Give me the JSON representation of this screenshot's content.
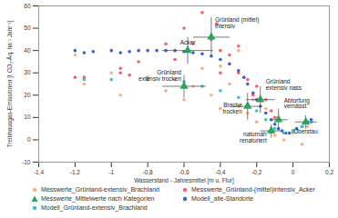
{
  "chart_data": {
    "type": "scatter",
    "x_label": "Wasserstand - Jahresmittel [m u. Flur]",
    "y_label": "Treibhausgas-Emissionen [t CO₂-Äq. ha⁻¹ Jahr⁻¹]",
    "xlim": [
      -1.4,
      0.2
    ],
    "ylim": [
      -10,
      60
    ],
    "xticks": [
      {
        "value": -1.4,
        "label": "-1,4"
      },
      {
        "value": -1.2,
        "label": "-1,2"
      },
      -1,
      {
        "value": -0.8,
        "label": "-0,8"
      },
      {
        "value": -0.6,
        "label": "-0,6"
      },
      {
        "value": -0.4,
        "label": "-0,4"
      },
      {
        "value": -0.2,
        "label": "-0,2"
      },
      0,
      {
        "value": 0.2,
        "label": "0,2"
      }
    ],
    "yticks": [
      -10,
      0,
      10,
      20,
      30,
      40,
      50,
      60
    ],
    "grid": false,
    "legend": "bottom",
    "series": [
      {
        "name": "Messwerte_Grünland-extensiv_Brachland",
        "color": "#f4b183",
        "marker": "circle",
        "x": [
          -1.2,
          -1.15,
          -1.0,
          -0.95,
          -0.8,
          -0.7,
          -0.65,
          -0.6,
          -0.55,
          -0.5,
          -0.45,
          -0.4,
          -0.4,
          -0.35,
          -0.3,
          -0.3,
          -0.25,
          -0.22,
          -0.2,
          -0.15,
          -0.12,
          -0.1,
          -0.05,
          0,
          0.05,
          0.08
        ],
        "values": [
          38,
          25,
          30,
          20,
          28,
          22,
          27,
          18,
          24,
          32,
          20,
          14,
          33,
          25,
          15,
          40,
          12,
          18,
          8,
          14,
          5,
          2,
          0,
          3,
          -2,
          6
        ]
      },
      {
        "name": "Messwerte_Grünland-(mittel)intensiv_Acker",
        "color": "#f0626e",
        "marker": "circle",
        "x": [
          -1.2,
          -1.15,
          -0.95,
          -0.95,
          -0.9,
          -0.85,
          -0.7,
          -0.65,
          -0.6,
          -0.55,
          -0.5,
          -0.45,
          -0.42,
          -0.4,
          -0.4,
          -0.35,
          -0.3,
          -0.3,
          -0.25,
          -0.22,
          -0.2,
          -0.15,
          -0.12,
          -0.1
        ],
        "values": [
          28,
          28,
          30,
          32,
          29,
          35,
          43,
          36,
          50,
          43,
          57,
          45,
          52,
          40,
          30,
          38,
          30,
          42,
          27,
          20,
          24,
          18,
          13,
          10
        ]
      },
      {
        "name": "Messwerte_Mittelwerte nach Kategorien",
        "color": "#2ca25f",
        "marker": "triangle",
        "x": [
          -0.45,
          -0.58,
          -0.6,
          -0.18,
          -0.25,
          -0.08,
          -0.12,
          0.07
        ],
        "values": [
          46,
          40,
          24,
          18,
          15,
          9,
          4,
          8
        ],
        "x_error": [
          0.1,
          0.14,
          0.12,
          0.08,
          0.08,
          0.05,
          0.06,
          0.06
        ],
        "y_error": [
          9,
          6,
          5,
          6,
          6,
          5,
          3,
          3
        ],
        "labels": [
          "Grünland (mittel)\nintensiv",
          "Acker",
          "Grünland\nextensiv trocken",
          "Grünland\nextensiv nass",
          "Brache\ntrocken",
          "Abtorfung\nvernässt",
          "naturnah\nrenaturiert",
          "Überstau"
        ]
      },
      {
        "name": "Modell_alle-Standorte",
        "color": "#3f5fc4",
        "marker": "circle",
        "x": [
          -1.2,
          -1.15,
          -1.1,
          -1.0,
          -0.95,
          -0.9,
          -0.85,
          -0.8,
          -0.75,
          -0.7,
          -0.65,
          -0.6,
          -0.55,
          -0.5,
          -0.45,
          -0.4,
          -0.35,
          -0.3,
          -0.27,
          -0.25,
          -0.22,
          -0.2,
          -0.18,
          -0.15,
          -0.12,
          -0.1,
          -0.08,
          -0.06,
          -0.04,
          -0.02,
          0,
          0.02,
          0.05,
          0.08,
          0.1
        ],
        "values": [
          40,
          39,
          39.5,
          40,
          39,
          39.5,
          40,
          40,
          40,
          40,
          40,
          39.5,
          39,
          38.5,
          37.5,
          36,
          34,
          31,
          28,
          25,
          21,
          18,
          15,
          12,
          9,
          7,
          5,
          4,
          3,
          3,
          4,
          5,
          6,
          8,
          9
        ]
      },
      {
        "name": "Modell_Grünland-extensiv_Brachland",
        "color": "#40bfc8",
        "marker": "circle",
        "x": [
          -1.15,
          -1.0,
          -0.8,
          -0.6,
          -0.5,
          -0.4,
          -0.3,
          -0.25,
          -0.2,
          -0.15,
          -0.1,
          -0.05,
          0,
          0.05,
          0.1
        ],
        "values": [
          27,
          27,
          27,
          26,
          24,
          22,
          19,
          16,
          13,
          9,
          5,
          3,
          4,
          6,
          8
        ]
      }
    ]
  }
}
